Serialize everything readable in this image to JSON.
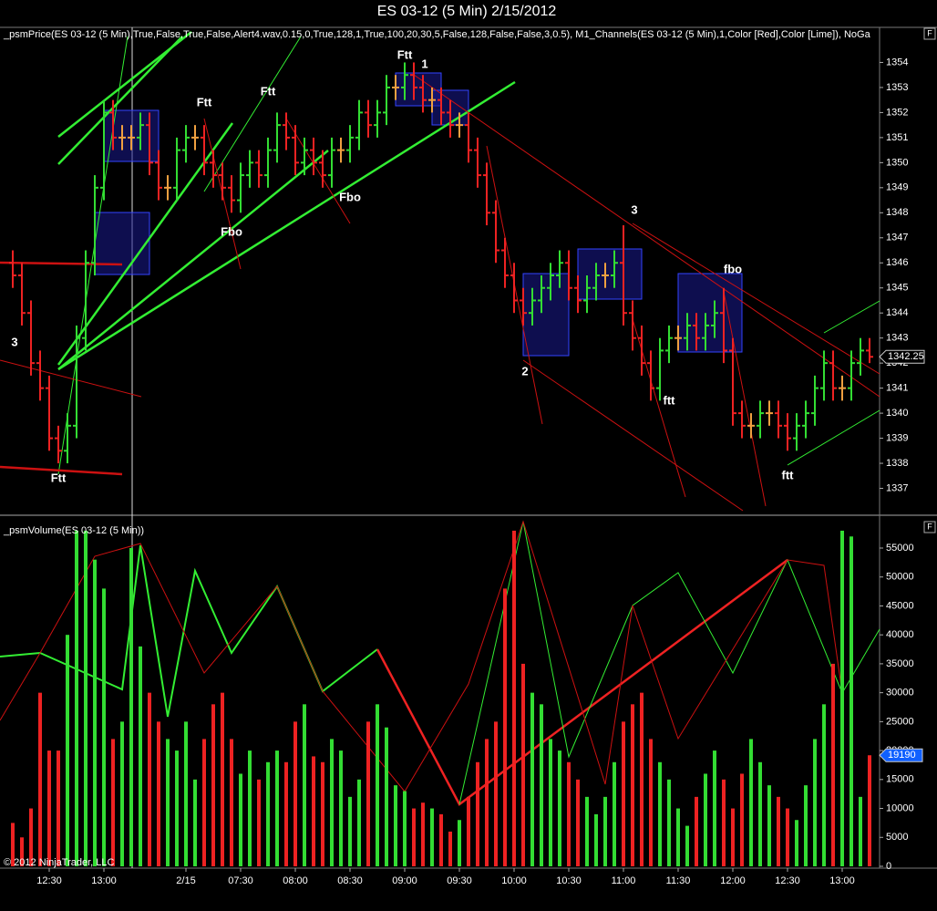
{
  "page": {
    "title": "ES 03-12 (5 Min)  2/15/2012",
    "copyright": "© 2012 NinjaTrader, LLC",
    "panel_button": "F"
  },
  "chart_data": [
    {
      "type": "ohlc",
      "title": "_psmPrice(ES 03-12 (5 Min),True,False,True,False,Alert4.wav,0.15,0,True,128,1,True,100,20,30,5,False,128,False,False,3,0.5), M1_Channels(ES 03-12 (5 Min),1,Color [Red],Color [Lime]), NoGa",
      "ylim": [
        1336,
        1355.4
      ],
      "yticks": [
        1337,
        1338,
        1339,
        1340,
        1341,
        1342,
        1343,
        1344,
        1345,
        1346,
        1347,
        1348,
        1349,
        1350,
        1351,
        1352,
        1353,
        1354
      ],
      "up_color": "#33dd33",
      "down_color": "#ee2222",
      "flat_color": "#f0a040",
      "open": [
        1346,
        1345.5,
        1344,
        1342,
        1341,
        1339,
        1338.5,
        1339.5,
        1343,
        1346,
        1349,
        1352,
        1351,
        1351,
        1351,
        1351.5,
        1350,
        1349,
        1349,
        1350.5,
        1351,
        1351,
        1350,
        1349.5,
        1349,
        1348.5,
        1349.5,
        1350,
        1349.5,
        1350.5,
        1351.5,
        1351,
        1350,
        1350.5,
        1350,
        1349.5,
        1350.5,
        1350.5,
        1351,
        1352,
        1351.5,
        1352,
        1353,
        1353,
        1353.5,
        1353,
        1352.5,
        1352.5,
        1352,
        1351.5,
        1351.5,
        1350.5,
        1349.5,
        1348,
        1346.5,
        1345.5,
        1344.5,
        1344,
        1344.5,
        1345,
        1345.5,
        1346,
        1345,
        1344.5,
        1345,
        1345.5,
        1345.5,
        1346,
        1344,
        1343,
        1342,
        1341,
        1342.5,
        1343,
        1343,
        1343.5,
        1343,
        1343.5,
        1344,
        1342.5,
        1340,
        1339.5,
        1339.5,
        1340,
        1340,
        1339.5,
        1339,
        1339.5,
        1340,
        1341,
        1342,
        1341,
        1341,
        1342,
        1342.5
      ],
      "high": [
        1346.5,
        1346,
        1344.5,
        1342.5,
        1341.5,
        1339.5,
        1340,
        1343.5,
        1346.5,
        1349.5,
        1352.5,
        1352.5,
        1351.5,
        1351.5,
        1352,
        1352,
        1350.5,
        1349.5,
        1351,
        1351.5,
        1351.5,
        1351.5,
        1350.5,
        1350,
        1349.5,
        1350,
        1350.5,
        1350.5,
        1351,
        1352,
        1352,
        1351.5,
        1351,
        1351,
        1350.5,
        1351,
        1351,
        1351.5,
        1352.5,
        1352.5,
        1352.5,
        1353.5,
        1353.5,
        1354,
        1354,
        1353.5,
        1353,
        1353,
        1352.5,
        1352,
        1352,
        1351,
        1350,
        1348.5,
        1347,
        1346,
        1345,
        1345,
        1345.5,
        1346,
        1346.5,
        1346.5,
        1345.5,
        1345.5,
        1346,
        1346,
        1346.5,
        1347.5,
        1344.5,
        1343.5,
        1342.5,
        1343,
        1343.5,
        1343.5,
        1344,
        1344,
        1344,
        1344.5,
        1345,
        1343,
        1340.5,
        1340,
        1340.5,
        1340.5,
        1340.5,
        1340,
        1340,
        1340.5,
        1341.5,
        1342.5,
        1342.5,
        1341.5,
        1342.5,
        1343,
        1343
      ],
      "low": [
        1345,
        1343.5,
        1341.5,
        1340.5,
        1338.5,
        1338,
        1338,
        1339,
        1342.5,
        1345.5,
        1348.5,
        1350.5,
        1350.5,
        1350.5,
        1350.5,
        1349.5,
        1348.5,
        1348.5,
        1348.5,
        1350,
        1350.5,
        1349.5,
        1349,
        1348.5,
        1348,
        1348,
        1349,
        1349,
        1349,
        1350,
        1350.5,
        1349.5,
        1349.5,
        1349.5,
        1349,
        1349,
        1350,
        1350,
        1350.5,
        1351,
        1351,
        1351.5,
        1352.5,
        1352.5,
        1352.5,
        1352,
        1352,
        1351.5,
        1351,
        1351,
        1350,
        1349,
        1347.5,
        1346,
        1345,
        1344,
        1343.5,
        1343.5,
        1344,
        1344.5,
        1345,
        1344.5,
        1344,
        1344,
        1344.5,
        1345,
        1345,
        1343.5,
        1342.5,
        1341.5,
        1340.5,
        1340.5,
        1342,
        1342.5,
        1342.5,
        1342.5,
        1342.5,
        1343,
        1342,
        1339.5,
        1339,
        1339,
        1339,
        1339.5,
        1339,
        1338.5,
        1338.5,
        1339,
        1339.5,
        1340.5,
        1340.5,
        1340.5,
        1340.5,
        1341.5,
        1342
      ],
      "close": [
        1345.5,
        1344,
        1342,
        1341,
        1339,
        1338.5,
        1339.5,
        1343,
        1346,
        1349,
        1352,
        1351,
        1351,
        1351,
        1351.5,
        1350,
        1349,
        1349,
        1350.5,
        1351,
        1351,
        1350,
        1349.5,
        1349,
        1348.5,
        1349.5,
        1350,
        1349.5,
        1350.5,
        1351.5,
        1351,
        1350,
        1350.5,
        1350,
        1349.5,
        1350.5,
        1350.5,
        1351,
        1352,
        1351.5,
        1352,
        1353,
        1353,
        1353.5,
        1353,
        1352.5,
        1352.5,
        1352,
        1351.5,
        1351.5,
        1350.5,
        1349.5,
        1348,
        1346.5,
        1345.5,
        1344.5,
        1344,
        1344.5,
        1345,
        1345.5,
        1346,
        1345,
        1344.5,
        1345,
        1345.5,
        1345.5,
        1346,
        1344,
        1343,
        1342,
        1341,
        1342.5,
        1343,
        1343,
        1343.5,
        1343,
        1343.5,
        1344,
        1342.5,
        1340,
        1339.5,
        1339.5,
        1340,
        1340,
        1339.5,
        1339,
        1339.5,
        1340,
        1341,
        1342,
        1341,
        1341,
        1342,
        1342.5,
        1342.25
      ],
      "annotations": [
        {
          "text": "Ftt",
          "color": "#ffffff"
        },
        {
          "text": "Ftt",
          "color": "#ffffff"
        },
        {
          "text": "Ftt",
          "color": "#ffffff"
        },
        {
          "text": "Fbo",
          "color": "#ffffff"
        },
        {
          "text": "Fbo",
          "color": "#ffffff"
        },
        {
          "text": "Ftt",
          "color": "#ffffff"
        },
        {
          "text": "1",
          "color": "#ee2222"
        },
        {
          "text": "3",
          "color": "#ee2222"
        },
        {
          "text": "2",
          "color": "#ee2222"
        },
        {
          "text": "3",
          "color": "#ee2222"
        },
        {
          "text": "ftt",
          "color": "#ffffff"
        },
        {
          "text": "fbo",
          "color": "#ffffff"
        },
        {
          "text": "ftt",
          "color": "#ffffff"
        }
      ]
    },
    {
      "type": "bar",
      "title": "_psmVolume(ES 03-12 (5 Min))",
      "ylim": [
        0,
        60200
      ],
      "yticks": [
        0,
        5000,
        10000,
        15000,
        20000,
        25000,
        30000,
        35000,
        40000,
        45000,
        50000,
        55000
      ],
      "last_color": "#1060ff",
      "categories": [
        null,
        null,
        null,
        null,
        "12:30",
        null,
        null,
        null,
        null,
        null,
        "13:00",
        null,
        null,
        null,
        null,
        null,
        null,
        null,
        null,
        "2/15",
        null,
        null,
        null,
        null,
        null,
        "07:30",
        null,
        null,
        null,
        null,
        null,
        "08:00",
        null,
        null,
        null,
        null,
        null,
        "08:30",
        null,
        null,
        null,
        null,
        null,
        "09:00",
        null,
        null,
        null,
        null,
        null,
        "09:30",
        null,
        null,
        null,
        null,
        null,
        "10:00",
        null,
        null,
        null,
        null,
        null,
        "10:30",
        null,
        null,
        null,
        null,
        null,
        "11:00",
        null,
        null,
        null,
        null,
        null,
        "11:30",
        null,
        null,
        null,
        null,
        null,
        "12:00",
        null,
        null,
        null,
        null,
        null,
        "12:30",
        null,
        null,
        null,
        null,
        null,
        "13:00",
        null,
        null,
        null
      ],
      "values": [
        7500,
        5000,
        10000,
        30000,
        20000,
        20000,
        40000,
        58000,
        58000,
        53000,
        48000,
        22000,
        25000,
        55000,
        38000,
        30000,
        25000,
        22000,
        20000,
        25000,
        15000,
        22000,
        28000,
        30000,
        22000,
        16000,
        20000,
        15000,
        18000,
        20000,
        18000,
        25000,
        28000,
        19000,
        18000,
        22000,
        20000,
        12000,
        15000,
        25000,
        28000,
        24000,
        14000,
        13000,
        10000,
        11000,
        10000,
        9000,
        6000,
        8000,
        12000,
        18000,
        22000,
        25000,
        48000,
        58000,
        35000,
        30000,
        28000,
        22000,
        20000,
        18000,
        15000,
        12000,
        9000,
        12000,
        18000,
        25000,
        28000,
        30000,
        22000,
        18000,
        15000,
        10000,
        7000,
        12000,
        16000,
        20000,
        15000,
        10000,
        16000,
        22000,
        18000,
        14000,
        12000,
        10000,
        8000,
        14000,
        22000,
        28000,
        35000,
        58000,
        57000,
        12000,
        19190
      ]
    }
  ]
}
